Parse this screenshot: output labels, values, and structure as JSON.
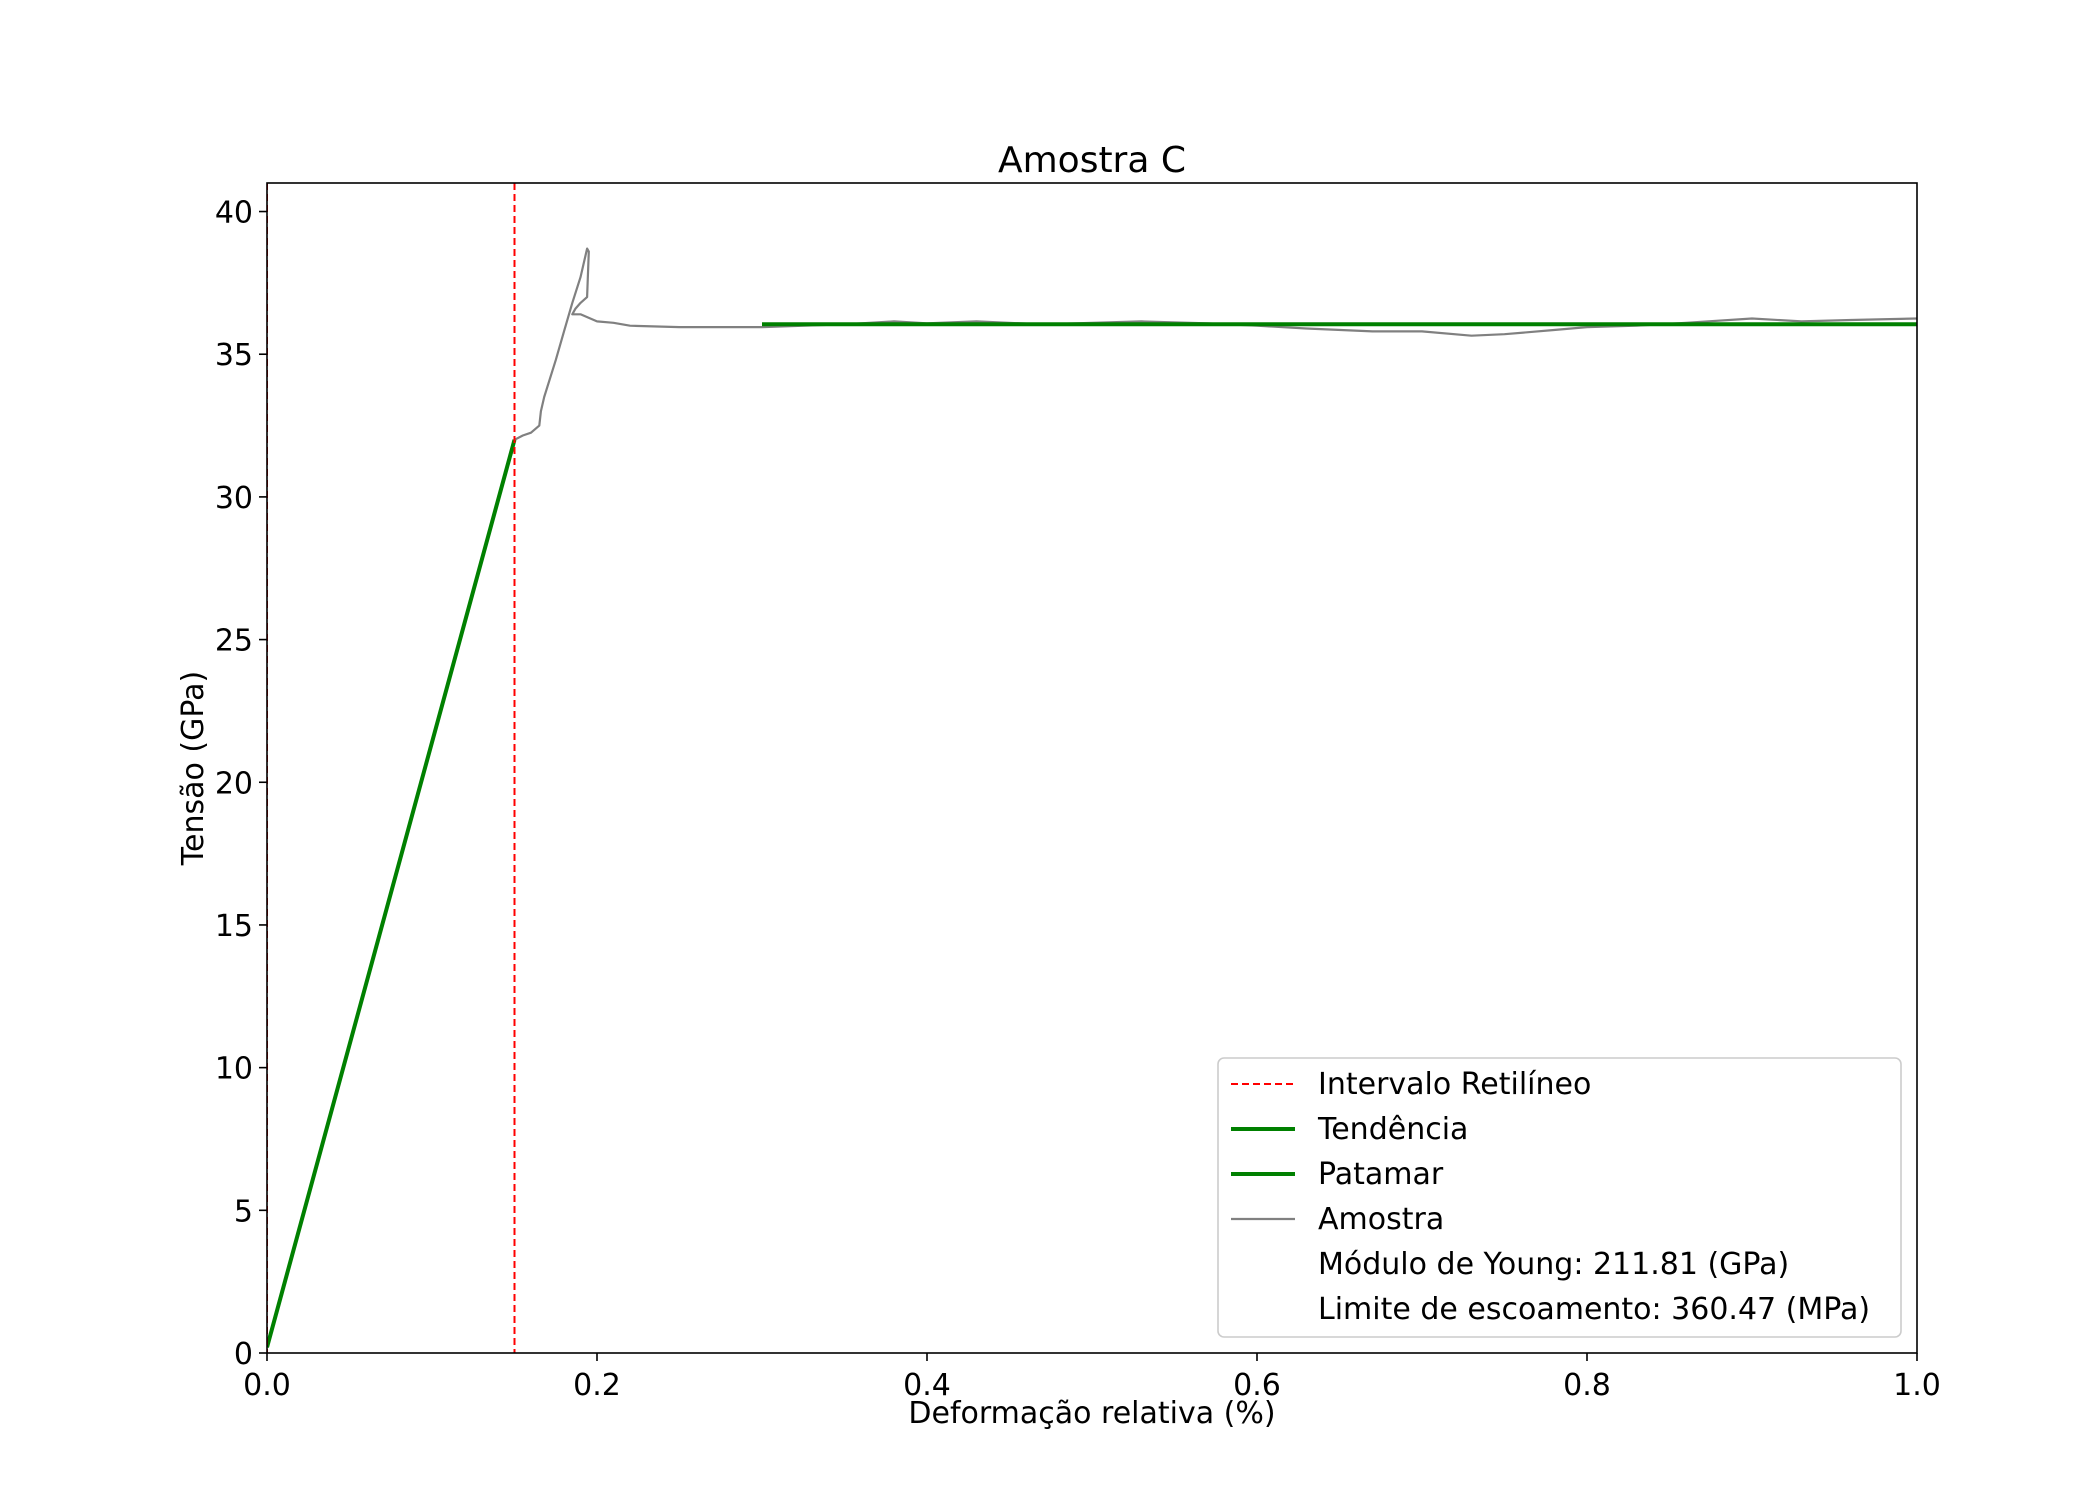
{
  "chart_data": {
    "type": "line",
    "title": "Amostra C",
    "xlabel": "Deformação relativa (%)",
    "ylabel": "Tensão (GPa)",
    "xlim": [
      0.0,
      1.0
    ],
    "ylim": [
      0,
      41
    ],
    "xticks": [
      0.0,
      0.2,
      0.4,
      0.6,
      0.8,
      1.0
    ],
    "xtick_labels": [
      "0.0",
      "0.2",
      "0.4",
      "0.6",
      "0.8",
      "1.0"
    ],
    "yticks": [
      0,
      5,
      10,
      15,
      20,
      25,
      30,
      35,
      40
    ],
    "ytick_labels": [
      "0",
      "5",
      "10",
      "15",
      "20",
      "25",
      "30",
      "35",
      "40"
    ],
    "grid": false,
    "legend_position": "lower-right",
    "series": [
      {
        "name": "Intervalo Retilíneo",
        "kind": "vlines",
        "style": "dashed",
        "color": "#ff0000",
        "x": [
          0.0,
          0.15
        ]
      },
      {
        "name": "Tendência",
        "kind": "line",
        "style": "solid",
        "color": "#008000",
        "points": [
          [
            0.0,
            0.2
          ],
          [
            0.15,
            32.0
          ]
        ]
      },
      {
        "name": "Patamar",
        "kind": "line",
        "style": "solid",
        "color": "#008000",
        "points": [
          [
            0.3,
            36.05
          ],
          [
            1.0,
            36.05
          ]
        ]
      },
      {
        "name": "Amostra",
        "kind": "line",
        "style": "solid",
        "color": "#808080",
        "points": [
          [
            0.0,
            0.2
          ],
          [
            0.05,
            10.8
          ],
          [
            0.1,
            21.4
          ],
          [
            0.15,
            32.0
          ],
          [
            0.155,
            32.15
          ],
          [
            0.16,
            32.25
          ],
          [
            0.165,
            32.5
          ],
          [
            0.166,
            33.0
          ],
          [
            0.168,
            33.5
          ],
          [
            0.175,
            34.8
          ],
          [
            0.18,
            35.8
          ],
          [
            0.185,
            36.8
          ],
          [
            0.19,
            37.7
          ],
          [
            0.194,
            38.7
          ],
          [
            0.195,
            38.6
          ],
          [
            0.194,
            37.0
          ],
          [
            0.19,
            36.8
          ],
          [
            0.187,
            36.6
          ],
          [
            0.185,
            36.4
          ],
          [
            0.19,
            36.4
          ],
          [
            0.2,
            36.15
          ],
          [
            0.21,
            36.1
          ],
          [
            0.22,
            36.0
          ],
          [
            0.25,
            35.95
          ],
          [
            0.3,
            35.95
          ],
          [
            0.35,
            36.05
          ],
          [
            0.38,
            36.15
          ],
          [
            0.4,
            36.08
          ],
          [
            0.43,
            36.15
          ],
          [
            0.47,
            36.05
          ],
          [
            0.5,
            36.1
          ],
          [
            0.53,
            36.15
          ],
          [
            0.57,
            36.08
          ],
          [
            0.6,
            36.0
          ],
          [
            0.63,
            35.9
          ],
          [
            0.67,
            35.8
          ],
          [
            0.7,
            35.8
          ],
          [
            0.73,
            35.65
          ],
          [
            0.75,
            35.7
          ],
          [
            0.78,
            35.85
          ],
          [
            0.8,
            35.95
          ],
          [
            0.83,
            36.0
          ],
          [
            0.86,
            36.1
          ],
          [
            0.9,
            36.25
          ],
          [
            0.93,
            36.15
          ],
          [
            0.96,
            36.2
          ],
          [
            1.0,
            36.25
          ]
        ]
      }
    ],
    "annotations": [
      "Módulo de Young: 211.81 (GPa)",
      "Limite de escoamento: 360.47 (MPa)"
    ]
  }
}
